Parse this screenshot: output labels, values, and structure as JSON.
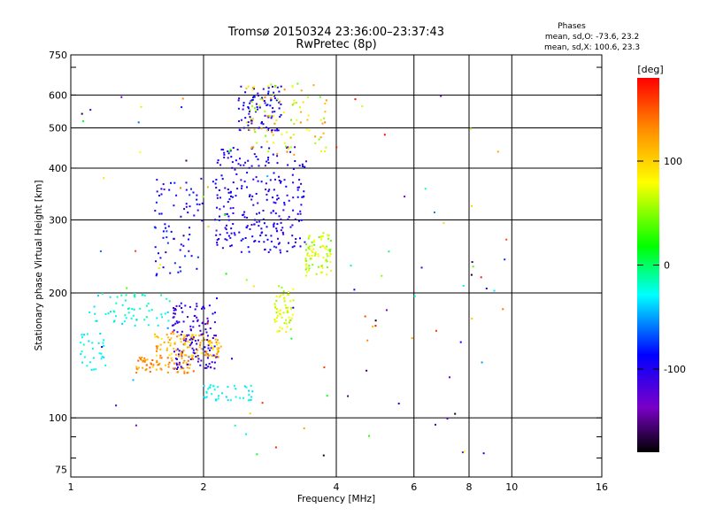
{
  "chart_data": {
    "type": "scatter",
    "title": "Tromsø 20150324 23:36:00–23:37:43",
    "subtitle": "RwPretec (8p)",
    "xlabel": "Frequency [MHz]",
    "ylabel": "Stationary phase Virtual Height [km]",
    "x_scale": "log",
    "y_scale": "log",
    "xlim": [
      1,
      16
    ],
    "ylim": [
      72,
      750
    ],
    "x_ticks": [
      1,
      2,
      4,
      6,
      8,
      10,
      16
    ],
    "y_ticks": [
      75,
      100,
      200,
      300,
      400,
      500,
      600,
      750
    ],
    "grid": true,
    "stats": {
      "heading": "Phases",
      "line_o": "mean, sd,O: -73.6, 23.2",
      "line_x": "mean, sd,X: 100.6, 23.3"
    },
    "colorbar": {
      "label": "[deg]",
      "range": [
        -180,
        180
      ],
      "ticks": [
        "100",
        "0",
        "-100"
      ],
      "tick_values": [
        100,
        0,
        -100
      ]
    },
    "clusters": [
      {
        "freq": [
          1.7,
          2.15
        ],
        "height": [
          130,
          190
        ],
        "phase": [
          -120,
          -95
        ],
        "count": 140
      },
      {
        "freq": [
          2.1,
          3.4
        ],
        "height": [
          250,
          450
        ],
        "phase": [
          -115,
          -85
        ],
        "count": 260
      },
      {
        "freq": [
          2.4,
          3.0
        ],
        "height": [
          490,
          640
        ],
        "phase": [
          -115,
          -80
        ],
        "count": 90
      },
      {
        "freq": [
          1.55,
          2.0
        ],
        "height": [
          220,
          380
        ],
        "phase": [
          -110,
          -70
        ],
        "count": 70
      },
      {
        "freq": [
          1.55,
          2.2
        ],
        "height": [
          140,
          160
        ],
        "phase": [
          80,
          140
        ],
        "count": 110
      },
      {
        "freq": [
          1.4,
          1.9
        ],
        "height": [
          128,
          140
        ],
        "phase": [
          100,
          150
        ],
        "count": 70
      },
      {
        "freq": [
          2.9,
          3.2
        ],
        "height": [
          160,
          210
        ],
        "phase": [
          50,
          90
        ],
        "count": 60
      },
      {
        "freq": [
          3.4,
          3.9
        ],
        "height": [
          220,
          280
        ],
        "phase": [
          40,
          90
        ],
        "count": 80
      },
      {
        "freq": [
          2.5,
          3.8
        ],
        "height": [
          430,
          640
        ],
        "phase": [
          40,
          140
        ],
        "count": 100
      },
      {
        "freq": [
          1.1,
          1.7
        ],
        "height": [
          165,
          200
        ],
        "phase": [
          -40,
          -10
        ],
        "count": 60
      },
      {
        "freq": [
          1.05,
          1.2
        ],
        "height": [
          130,
          160
        ],
        "phase": [
          -40,
          -20
        ],
        "count": 30
      },
      {
        "freq": [
          2.0,
          2.6
        ],
        "height": [
          110,
          120
        ],
        "phase": [
          -40,
          -20
        ],
        "count": 40
      },
      {
        "freq": [
          1.0,
          10.0
        ],
        "height": [
          80,
          650
        ],
        "phase": [
          -180,
          180
        ],
        "count": 110
      }
    ],
    "colors": {
      "grid": "#000000",
      "background": "#ffffff"
    }
  }
}
